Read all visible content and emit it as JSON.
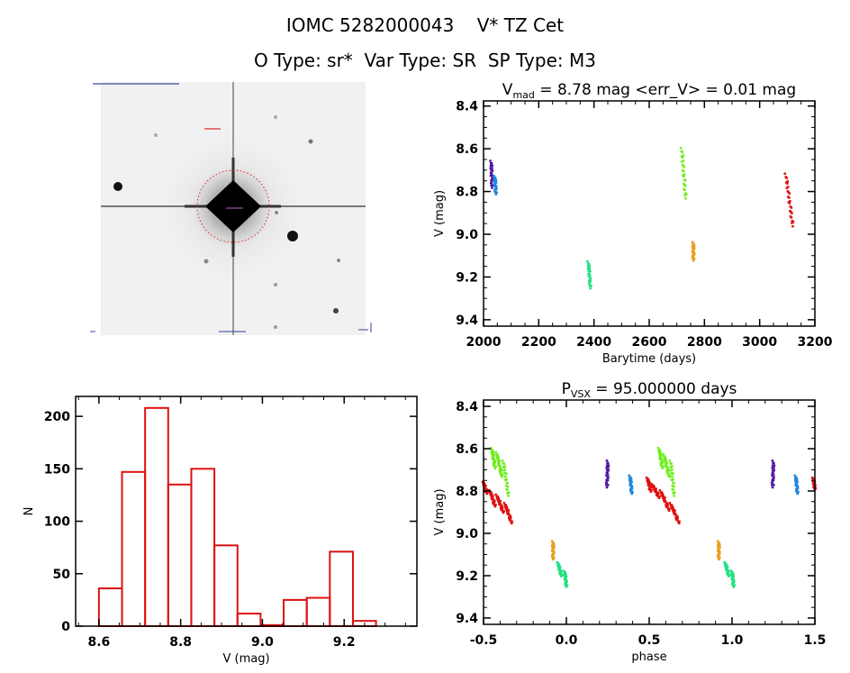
{
  "header": {
    "title": "IOMC 5282000043    V* TZ Cet",
    "subtitle": "O Type: sr*  Var Type: SR  SP Type: M3"
  },
  "image_panel": {
    "description_labels_legible": false,
    "marker_color": "#e02020"
  },
  "chart_data": [
    {
      "id": "lightcurve",
      "type": "scatter",
      "title": "V_mad = 8.78 mag <err_V> = 0.01 mag",
      "title_parts": {
        "main": "V",
        "sub": "mad",
        "rest": " = 8.78 mag <err_V> = 0.01 mag"
      },
      "xlabel": "Barytime (days)",
      "ylabel": "V (mag)",
      "xlim": [
        2000,
        3200
      ],
      "ylim": [
        9.43,
        8.376
      ],
      "y_inverted": true,
      "xticks": [
        2000,
        2200,
        2400,
        2600,
        2800,
        3000,
        3200
      ],
      "xtick_labels": [
        "2000",
        "2200",
        "2400",
        "2600",
        "2800",
        "3000",
        "3200"
      ],
      "yticks": [
        8.4,
        8.6,
        8.8,
        9.0,
        9.2,
        9.4
      ],
      "ytick_labels": [
        "8.4",
        "8.6",
        "8.8",
        "9.0",
        "9.2",
        "9.4"
      ],
      "series": [
        {
          "color": "#4a10a0",
          "segments": [
            [
              2028,
              8.66,
              2031,
              8.78
            ]
          ]
        },
        {
          "color": "#1e88e0",
          "segments": [
            [
              2041,
              8.73,
              2045,
              8.81
            ]
          ]
        },
        {
          "color": "#20e080",
          "segments": [
            [
              2380,
              9.13,
              2387,
              9.25
            ]
          ]
        },
        {
          "color": "#70ee20",
          "segments": [
            [
              2718,
              8.6,
              2732,
              8.83
            ]
          ]
        },
        {
          "color": "#e8a020",
          "segments": [
            [
              2760,
              9.04,
              2760,
              9.12
            ]
          ]
        },
        {
          "color": "#e01010",
          "segments": [
            [
              3095,
              8.72,
              3120,
              8.96
            ]
          ]
        }
      ]
    },
    {
      "id": "histogram",
      "type": "bar",
      "title": "",
      "xlabel": "V (mag)",
      "ylabel": "N",
      "xlim": [
        8.543,
        9.378
      ],
      "ylim": [
        0,
        219
      ],
      "xticks": [
        8.6,
        8.8,
        9.0,
        9.2
      ],
      "xtick_labels": [
        "8.6",
        "8.8",
        "9.0",
        "9.2"
      ],
      "yticks": [
        0,
        50,
        100,
        150,
        200
      ],
      "ytick_labels": [
        "0",
        "50",
        "100",
        "150",
        "200"
      ],
      "bin_start": 8.6,
      "bin_width": 0.0565,
      "values": [
        36,
        147,
        208,
        135,
        150,
        77,
        12,
        1,
        25,
        27,
        71,
        5
      ],
      "color": "#dd1111"
    },
    {
      "id": "phased",
      "type": "scatter",
      "title": "P_vsx = 95.000000 days",
      "title_parts": {
        "main": "P",
        "sub": "VSX",
        "rest": " = 95.000000 days"
      },
      "xlabel": "phase",
      "ylabel": "V (mag)",
      "xlim": [
        -0.5,
        1.5
      ],
      "ylim": [
        9.43,
        8.37
      ],
      "y_inverted": true,
      "xticks": [
        -0.5,
        0.0,
        0.5,
        1.0,
        1.5
      ],
      "xtick_labels": [
        "-0.5",
        "0.0",
        "0.5",
        "1.0",
        "1.5"
      ],
      "yticks": [
        8.4,
        8.6,
        8.8,
        9.0,
        9.2,
        9.4
      ],
      "ytick_labels": [
        "8.4",
        "8.6",
        "8.8",
        "9.0",
        "9.2",
        "9.4"
      ],
      "series": [
        {
          "color": "#4a10a0",
          "segments": [
            [
              0.25,
              8.66,
              0.245,
              8.78
            ],
            [
              1.25,
              8.66,
              1.245,
              8.78
            ]
          ]
        },
        {
          "color": "#1e88e0",
          "segments": [
            [
              0.385,
              8.73,
              0.395,
              8.81
            ],
            [
              1.385,
              8.73,
              1.395,
              8.81
            ]
          ]
        },
        {
          "color": "#e01010",
          "segments": [
            [
              -0.5,
              8.76,
              -0.48,
              8.81
            ],
            [
              -0.46,
              8.8,
              -0.43,
              8.87
            ],
            [
              -0.42,
              8.82,
              -0.38,
              8.9
            ],
            [
              -0.37,
              8.86,
              -0.33,
              8.95
            ],
            [
              0.49,
              8.74,
              0.51,
              8.8
            ],
            [
              0.52,
              8.77,
              0.56,
              8.83
            ],
            [
              0.57,
              8.8,
              0.62,
              8.89
            ],
            [
              0.63,
              8.86,
              0.68,
              8.95
            ],
            [
              1.49,
              8.74,
              1.5,
              8.79
            ]
          ]
        },
        {
          "color": "#70ee20",
          "segments": [
            [
              -0.45,
              8.6,
              -0.43,
              8.69
            ],
            [
              -0.42,
              8.62,
              -0.39,
              8.73
            ],
            [
              -0.38,
              8.66,
              -0.35,
              8.82
            ],
            [
              0.56,
              8.6,
              0.58,
              8.69
            ],
            [
              0.59,
              8.63,
              0.62,
              8.73
            ],
            [
              0.63,
              8.66,
              0.65,
              8.82
            ]
          ]
        },
        {
          "color": "#e8a020",
          "segments": [
            [
              -0.08,
              9.04,
              -0.08,
              9.12
            ],
            [
              0.92,
              9.04,
              0.92,
              9.12
            ]
          ]
        },
        {
          "color": "#20e080",
          "segments": [
            [
              -0.05,
              9.14,
              -0.03,
              9.2
            ],
            [
              -0.01,
              9.18,
              0.0,
              9.25
            ],
            [
              0.96,
              9.14,
              0.98,
              9.2
            ],
            [
              1.0,
              9.18,
              1.01,
              9.25
            ]
          ]
        }
      ]
    }
  ]
}
